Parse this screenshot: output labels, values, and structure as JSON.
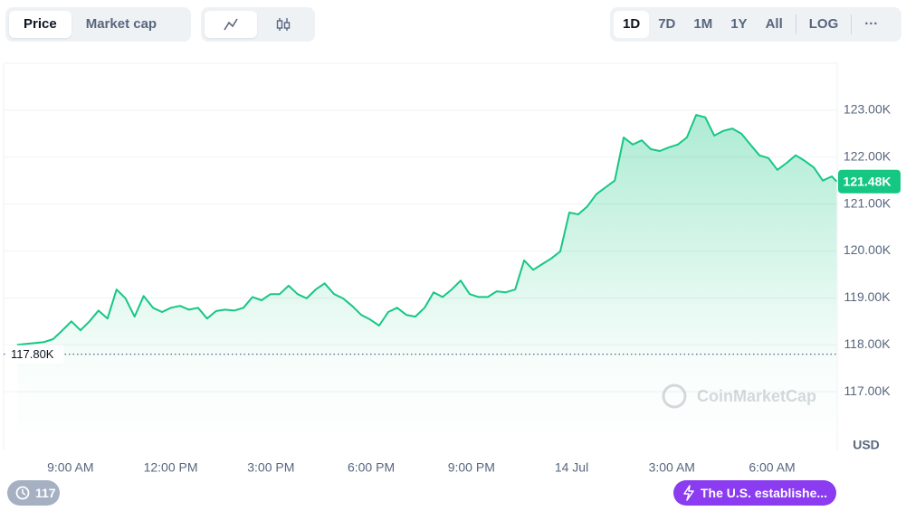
{
  "toolbar": {
    "metric_tabs": [
      "Price",
      "Market cap"
    ],
    "range_tabs": [
      "1D",
      "7D",
      "1M",
      "1Y",
      "All",
      "LOG"
    ],
    "more": "···"
  },
  "chart_data": {
    "type": "line",
    "x": [
      7.4,
      7.67,
      7.94,
      8.21,
      8.48,
      8.76,
      9.03,
      9.3,
      9.57,
      9.84,
      10.11,
      10.38,
      10.65,
      10.92,
      11.19,
      11.47,
      11.74,
      12.01,
      12.28,
      12.55,
      12.82,
      13.09,
      13.36,
      13.63,
      13.9,
      14.18,
      14.45,
      14.72,
      14.99,
      15.26,
      15.53,
      15.8,
      16.07,
      16.34,
      16.61,
      16.89,
      17.16,
      17.43,
      17.7,
      17.97,
      18.24,
      18.51,
      18.78,
      19.05,
      19.32,
      19.6,
      19.87,
      20.14,
      20.41,
      20.68,
      20.95,
      21.22,
      21.49,
      21.76,
      22.03,
      22.31,
      22.58,
      22.85,
      23.12,
      23.39,
      23.66,
      23.93,
      24.2,
      24.47,
      24.74,
      25.02,
      25.29,
      25.56,
      25.83,
      26.1,
      26.37,
      26.64,
      26.91,
      27.18,
      27.45,
      27.73,
      28.0,
      28.27,
      28.54,
      28.81,
      29.08,
      29.35,
      29.62,
      29.89,
      30.16,
      30.44,
      30.71,
      30.98,
      31.25,
      31.52,
      31.79,
      31.93
    ],
    "series": [
      {
        "color": "#16c784",
        "values": [
          118000,
          118020,
          118040,
          118060,
          118120,
          118310,
          118500,
          118310,
          118500,
          118730,
          118560,
          119180,
          118990,
          118600,
          119040,
          118790,
          118700,
          118790,
          118830,
          118750,
          118790,
          118560,
          118720,
          118750,
          118730,
          118790,
          119020,
          118950,
          119080,
          119080,
          119260,
          119080,
          118990,
          119180,
          119310,
          119080,
          118990,
          118830,
          118640,
          118540,
          118410,
          118700,
          118790,
          118640,
          118600,
          118790,
          119120,
          119020,
          119180,
          119370,
          119080,
          119020,
          119020,
          119140,
          119120,
          119180,
          119800,
          119600,
          119720,
          119840,
          119990,
          120820,
          120780,
          120950,
          121210,
          121360,
          121500,
          122420,
          122270,
          122360,
          122170,
          122130,
          122210,
          122270,
          122420,
          122900,
          122850,
          122460,
          122560,
          122610,
          122500,
          122270,
          122040,
          121980,
          121730,
          121880,
          122040,
          121920,
          121780,
          121500,
          121590,
          121480
        ]
      }
    ],
    "last_label": "121.48K",
    "open_line": {
      "value": 117800,
      "label": "117.80K"
    },
    "xlim": [
      7,
      31.95
    ],
    "xticks": [
      {
        "value": 9,
        "label": "9:00 AM"
      },
      {
        "value": 12,
        "label": "12:00 PM"
      },
      {
        "value": 15,
        "label": "3:00 PM"
      },
      {
        "value": 18,
        "label": "6:00 PM"
      },
      {
        "value": 21,
        "label": "9:00 PM"
      },
      {
        "value": 24,
        "label": "14 Jul"
      },
      {
        "value": 27,
        "label": "3:00 AM"
      },
      {
        "value": 30,
        "label": "6:00 AM"
      }
    ],
    "ylim": [
      115750,
      124000
    ],
    "yticks": [
      {
        "value": 117000,
        "label": "117.00K"
      },
      {
        "value": 118000,
        "label": "118.00K"
      },
      {
        "value": 119000,
        "label": "119.00K"
      },
      {
        "value": 120000,
        "label": "120.00K"
      },
      {
        "value": 121000,
        "label": "121.00K"
      },
      {
        "value": 122000,
        "label": "122.00K"
      },
      {
        "value": 123000,
        "label": "123.00K"
      }
    ],
    "y_axis_label": "USD",
    "watermark": "CoinMarketCap",
    "grid": true
  },
  "footer": {
    "events_count": 117,
    "news": "The U.S. establishe..."
  }
}
